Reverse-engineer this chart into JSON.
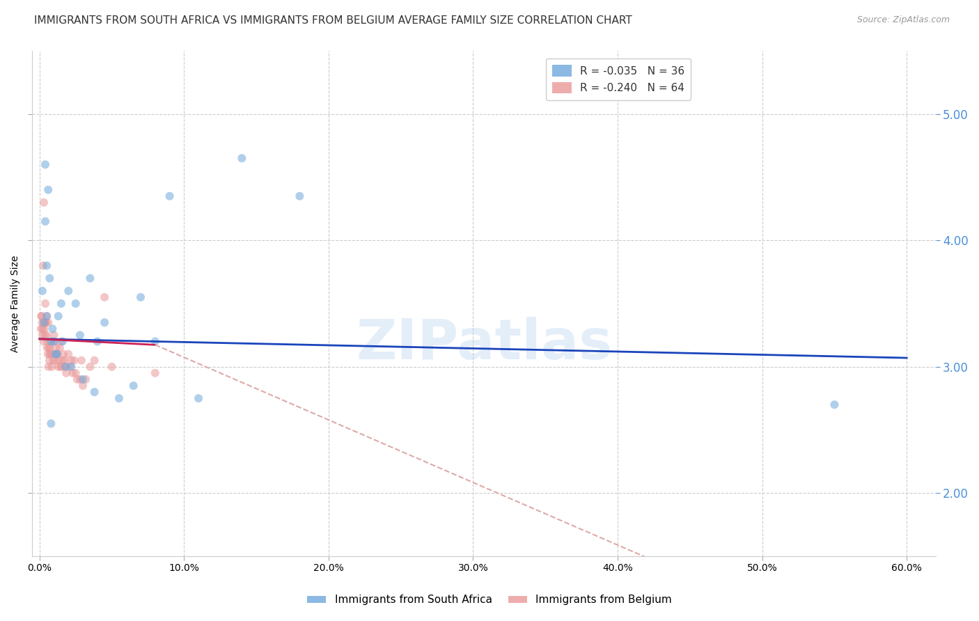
{
  "title": "IMMIGRANTS FROM SOUTH AFRICA VS IMMIGRANTS FROM BELGIUM AVERAGE FAMILY SIZE CORRELATION CHART",
  "source": "Source: ZipAtlas.com",
  "ylabel": "Average Family Size",
  "xlabel_vals": [
    0.0,
    10.0,
    20.0,
    30.0,
    40.0,
    50.0,
    60.0
  ],
  "ylabel_ticks": [
    2.0,
    3.0,
    4.0,
    5.0
  ],
  "xlim": [
    -0.5,
    62.0
  ],
  "ylim": [
    1.5,
    5.5
  ],
  "watermark": "ZIPatlas",
  "legend_1_color": "#6fa8dc",
  "legend_2_color": "#ea9999",
  "r1": -0.035,
  "n1": 36,
  "r2": -0.24,
  "n2": 64,
  "south_africa_x": [
    0.3,
    0.5,
    0.7,
    0.8,
    1.0,
    1.2,
    1.5,
    1.8,
    2.0,
    2.5,
    2.8,
    3.0,
    3.5,
    4.0,
    4.5,
    5.5,
    6.5,
    7.0,
    8.0,
    9.0,
    11.0,
    14.0,
    18.0,
    55.0,
    0.4,
    0.6,
    0.9,
    1.1,
    1.3,
    1.6,
    2.2,
    3.8,
    0.2,
    0.5,
    0.4,
    0.8
  ],
  "south_africa_y": [
    3.35,
    3.4,
    3.7,
    3.2,
    3.2,
    3.1,
    3.5,
    3.0,
    3.6,
    3.5,
    3.25,
    2.9,
    3.7,
    3.2,
    3.35,
    2.75,
    2.85,
    3.55,
    3.2,
    4.35,
    2.75,
    4.65,
    4.35,
    2.7,
    4.6,
    4.4,
    3.3,
    3.1,
    3.4,
    3.2,
    3.0,
    2.8,
    3.6,
    3.8,
    4.15,
    2.55
  ],
  "belgium_x": [
    0.1,
    0.15,
    0.2,
    0.22,
    0.25,
    0.28,
    0.3,
    0.32,
    0.35,
    0.38,
    0.4,
    0.42,
    0.45,
    0.48,
    0.5,
    0.52,
    0.55,
    0.58,
    0.6,
    0.62,
    0.65,
    0.68,
    0.7,
    0.72,
    0.75,
    0.8,
    0.85,
    0.9,
    0.95,
    1.0,
    1.05,
    1.1,
    1.15,
    1.2,
    1.25,
    1.3,
    1.35,
    1.4,
    1.45,
    1.5,
    1.55,
    1.6,
    1.65,
    1.75,
    1.8,
    1.85,
    2.0,
    2.1,
    2.2,
    2.3,
    2.4,
    2.5,
    2.6,
    2.8,
    2.9,
    3.0,
    3.2,
    3.5,
    3.8,
    4.5,
    5.0,
    8.0,
    0.12,
    0.18
  ],
  "belgium_y": [
    3.3,
    3.4,
    3.25,
    3.3,
    3.8,
    3.2,
    4.3,
    3.3,
    3.35,
    3.25,
    3.5,
    3.35,
    3.35,
    3.25,
    3.4,
    3.15,
    3.2,
    3.1,
    3.35,
    3.0,
    3.15,
    3.05,
    3.15,
    3.1,
    3.1,
    3.2,
    3.0,
    3.1,
    3.05,
    3.25,
    3.2,
    3.05,
    3.15,
    3.1,
    3.1,
    3.0,
    3.05,
    3.15,
    3.0,
    3.2,
    3.0,
    3.05,
    3.1,
    3.05,
    3.0,
    2.95,
    3.1,
    3.0,
    3.05,
    2.95,
    3.05,
    2.95,
    2.9,
    2.9,
    3.05,
    2.85,
    2.9,
    3.0,
    3.05,
    3.55,
    3.0,
    2.95,
    3.4,
    3.35
  ],
  "title_fontsize": 11,
  "axis_label_fontsize": 10,
  "tick_fontsize": 10,
  "right_tick_color": "#4a90d9",
  "grid_color": "#cccccc",
  "background_color": "#ffffff",
  "scatter_alpha": 0.55,
  "scatter_size": 75,
  "line1_color": "#1a44bb",
  "line1_start_y": 3.22,
  "line1_end_y": 3.07,
  "line2_color": "#cc2255",
  "line2_start_y": 3.22,
  "line2_end_y": 2.87,
  "line2_solid_end_x": 8.0,
  "line2_dash_color": "#ddaaaa",
  "line2_dash_end_x": 62.0,
  "line2_dash_end_y": 0.5
}
